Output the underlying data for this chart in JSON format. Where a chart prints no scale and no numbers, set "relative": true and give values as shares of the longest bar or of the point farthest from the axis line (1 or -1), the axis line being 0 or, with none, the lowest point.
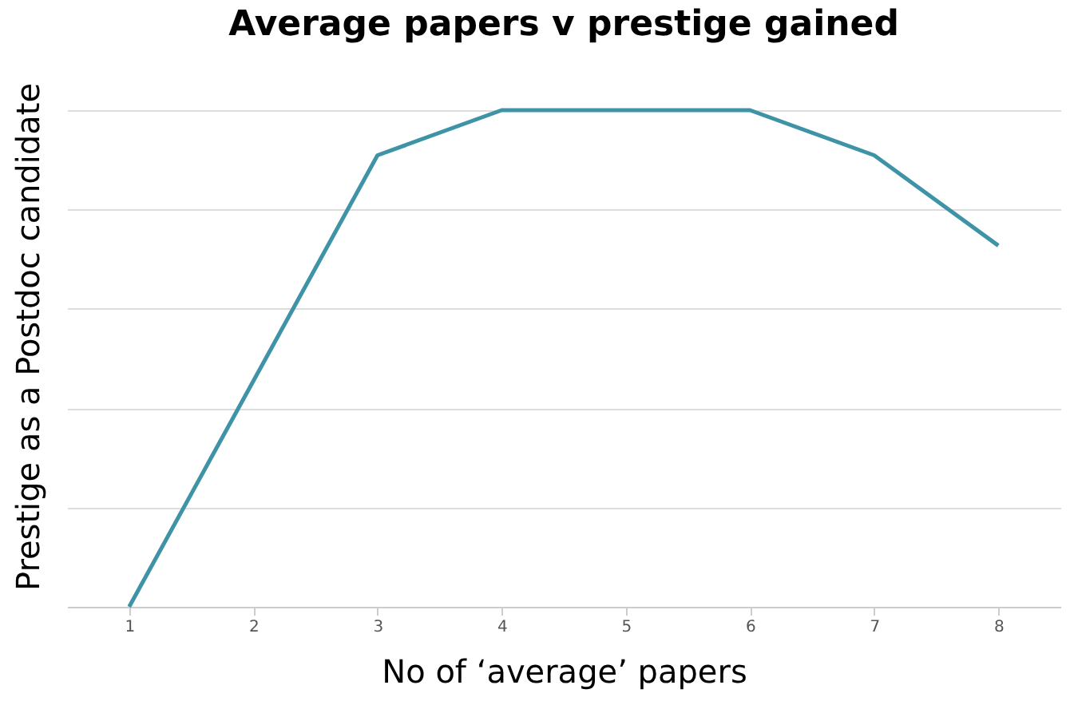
{
  "chart_data": {
    "type": "line",
    "title": "Average papers v prestige gained",
    "xlabel": "No of ‘average’ papers",
    "ylabel": "Prestige as a Postdoc candidate",
    "categories": [
      "1",
      "2",
      "3",
      "4",
      "5",
      "6",
      "7",
      "8"
    ],
    "relative": true,
    "grid": "y",
    "series": [
      {
        "color": "#3f93a6",
        "values": [
          0,
          0.4545,
          0.9091,
          1,
          1,
          1,
          0.9091,
          0.7273
        ]
      }
    ]
  }
}
